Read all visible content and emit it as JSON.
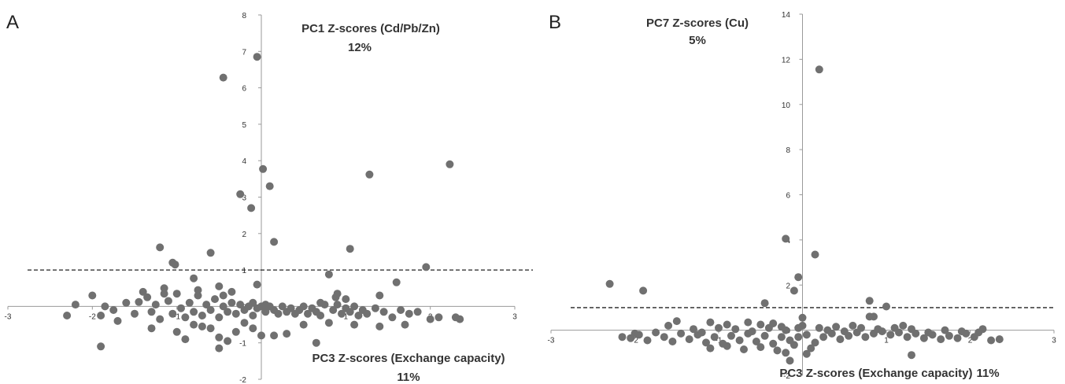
{
  "chart_data": [
    {
      "type": "scatter",
      "panel_label": "A",
      "title": "PC1 Z-scores (Cd/Pb/Zn)",
      "title_pct": "12%",
      "xlabel": "PC3 Z-scores (Exchange capacity)",
      "xlabel_pct": "11%",
      "xlim": [
        -3,
        3
      ],
      "ylim": [
        -2,
        8
      ],
      "xticks": [
        -3,
        -2,
        -1,
        0,
        1,
        2,
        3
      ],
      "yticks": [
        -2,
        -1,
        0,
        1,
        2,
        3,
        4,
        5,
        6,
        7,
        8
      ],
      "threshold_y": 1,
      "grid": false,
      "marker_color": "#707070",
      "points": [
        [
          -0.05,
          6.85
        ],
        [
          -0.45,
          6.28
        ],
        [
          1.28,
          3.62
        ],
        [
          2.23,
          3.9
        ],
        [
          0.02,
          3.77
        ],
        [
          0.1,
          3.3
        ],
        [
          -0.25,
          3.08
        ],
        [
          -0.12,
          2.7
        ],
        [
          0.15,
          1.77
        ],
        [
          1.05,
          1.58
        ],
        [
          -1.2,
          1.62
        ],
        [
          -0.6,
          1.47
        ],
        [
          -1.05,
          1.2
        ],
        [
          -1.02,
          1.15
        ],
        [
          1.95,
          1.08
        ],
        [
          0.8,
          0.88
        ],
        [
          -0.8,
          0.77
        ],
        [
          1.6,
          0.66
        ],
        [
          -0.5,
          0.55
        ],
        [
          1.4,
          0.3
        ],
        [
          -0.05,
          0.6
        ],
        [
          0.9,
          0.35
        ],
        [
          0.88,
          0.25
        ],
        [
          0.0,
          0.0
        ],
        [
          -2.3,
          -0.25
        ],
        [
          -2.2,
          0.05
        ],
        [
          -2.0,
          0.3
        ],
        [
          -1.9,
          -0.25
        ],
        [
          -1.85,
          0.0
        ],
        [
          -1.75,
          -0.1
        ],
        [
          -1.7,
          -0.4
        ],
        [
          -1.6,
          0.1
        ],
        [
          -1.5,
          -0.2
        ],
        [
          -1.4,
          0.4
        ],
        [
          -1.35,
          0.25
        ],
        [
          -1.3,
          -0.15
        ],
        [
          -1.25,
          0.05
        ],
        [
          -1.2,
          -0.35
        ],
        [
          -1.15,
          0.5
        ],
        [
          -1.1,
          0.15
        ],
        [
          -1.05,
          -0.2
        ],
        [
          -1.0,
          0.35
        ],
        [
          -0.95,
          -0.05
        ],
        [
          -0.9,
          -0.3
        ],
        [
          -0.85,
          0.1
        ],
        [
          -0.8,
          -0.15
        ],
        [
          -0.75,
          0.3
        ],
        [
          -0.7,
          -0.25
        ],
        [
          -0.65,
          0.05
        ],
        [
          -0.6,
          -0.1
        ],
        [
          -0.55,
          0.2
        ],
        [
          -0.5,
          -0.3
        ],
        [
          -0.45,
          0.0
        ],
        [
          -0.4,
          -0.15
        ],
        [
          -0.35,
          0.1
        ],
        [
          -0.3,
          -0.2
        ],
        [
          -0.25,
          0.05
        ],
        [
          -0.2,
          -0.1
        ],
        [
          -0.15,
          0.0
        ],
        [
          -0.1,
          -0.25
        ],
        [
          -0.05,
          -0.05
        ],
        [
          0.05,
          -0.15
        ],
        [
          0.1,
          0.0
        ],
        [
          0.15,
          -0.1
        ],
        [
          0.2,
          -0.2
        ],
        [
          0.25,
          0.0
        ],
        [
          0.3,
          -0.15
        ],
        [
          0.35,
          -0.05
        ],
        [
          0.4,
          -0.2
        ],
        [
          0.45,
          -0.1
        ],
        [
          0.5,
          0.0
        ],
        [
          0.55,
          -0.2
        ],
        [
          0.6,
          -0.05
        ],
        [
          0.65,
          -0.15
        ],
        [
          0.7,
          -0.25
        ],
        [
          0.75,
          0.05
        ],
        [
          0.85,
          -0.1
        ],
        [
          0.9,
          0.05
        ],
        [
          0.95,
          -0.2
        ],
        [
          1.0,
          -0.05
        ],
        [
          1.05,
          -0.15
        ],
        [
          1.1,
          0.0
        ],
        [
          1.15,
          -0.25
        ],
        [
          1.2,
          -0.1
        ],
        [
          1.25,
          -0.2
        ],
        [
          1.35,
          -0.05
        ],
        [
          1.45,
          -0.15
        ],
        [
          1.55,
          -0.3
        ],
        [
          1.65,
          -0.1
        ],
        [
          1.75,
          -0.2
        ],
        [
          1.85,
          -0.15
        ],
        [
          2.0,
          -0.35
        ],
        [
          2.1,
          -0.3
        ],
        [
          2.3,
          -0.3
        ],
        [
          2.35,
          -0.35
        ],
        [
          -1.3,
          -0.6
        ],
        [
          -1.9,
          -1.1
        ],
        [
          -1.0,
          -0.7
        ],
        [
          -0.9,
          -0.9
        ],
        [
          -0.7,
          -0.55
        ],
        [
          -0.5,
          -0.85
        ],
        [
          -0.4,
          -0.95
        ],
        [
          -0.3,
          -0.7
        ],
        [
          -0.1,
          -0.6
        ],
        [
          0.0,
          -0.8
        ],
        [
          0.15,
          -0.8
        ],
        [
          0.3,
          -0.75
        ],
        [
          0.65,
          -1.0
        ],
        [
          -0.5,
          -1.15
        ],
        [
          -0.6,
          -0.6
        ],
        [
          -0.8,
          -0.5
        ],
        [
          -0.2,
          -0.45
        ],
        [
          0.5,
          -0.5
        ],
        [
          0.8,
          -0.45
        ],
        [
          1.1,
          -0.5
        ],
        [
          1.4,
          -0.55
        ],
        [
          1.7,
          -0.5
        ],
        [
          1.0,
          0.2
        ],
        [
          0.7,
          0.1
        ],
        [
          -0.45,
          0.3
        ],
        [
          -1.15,
          0.35
        ],
        [
          -1.45,
          0.12
        ],
        [
          -0.75,
          0.45
        ],
        [
          -0.35,
          0.4
        ],
        [
          0.05,
          0.05
        ],
        [
          -0.1,
          0.1
        ]
      ]
    },
    {
      "type": "scatter",
      "panel_label": "B",
      "title": "PC7 Z-scores (Cu)",
      "title_pct": "5%",
      "xlabel": "PC3 Z-scores (Exchange capacity)",
      "xlabel_pct": "11%",
      "xlim": [
        -3,
        3
      ],
      "ylim": [
        -2,
        14
      ],
      "xticks": [
        -3,
        -2,
        -1,
        0,
        1,
        2,
        3
      ],
      "yticks": [
        -2,
        0,
        2,
        4,
        6,
        8,
        10,
        12,
        14
      ],
      "threshold_y": 1,
      "grid": false,
      "marker_color": "#707070",
      "points": [
        [
          0.2,
          11.55
        ],
        [
          -0.2,
          4.05
        ],
        [
          0.15,
          3.35
        ],
        [
          -0.05,
          2.35
        ],
        [
          -2.3,
          2.05
        ],
        [
          -1.9,
          1.75
        ],
        [
          -0.45,
          1.2
        ],
        [
          -0.1,
          1.75
        ],
        [
          0.8,
          1.3
        ],
        [
          1.0,
          1.05
        ],
        [
          0.0,
          0.55
        ],
        [
          0.8,
          0.6
        ],
        [
          0.85,
          0.6
        ],
        [
          -1.5,
          0.4
        ],
        [
          -1.1,
          0.35
        ],
        [
          -0.65,
          0.35
        ],
        [
          -0.35,
          0.3
        ],
        [
          1.3,
          -1.1
        ],
        [
          -0.15,
          -1.35
        ],
        [
          -0.05,
          -0.3
        ],
        [
          -2.15,
          -0.3
        ],
        [
          -2.05,
          -0.35
        ],
        [
          -1.95,
          -0.2
        ],
        [
          -1.85,
          -0.45
        ],
        [
          -1.75,
          -0.1
        ],
        [
          -1.65,
          -0.3
        ],
        [
          -1.55,
          -0.5
        ],
        [
          -1.45,
          -0.15
        ],
        [
          -1.35,
          -0.4
        ],
        [
          -1.25,
          -0.2
        ],
        [
          -1.15,
          -0.55
        ],
        [
          -1.05,
          -0.3
        ],
        [
          -0.95,
          -0.6
        ],
        [
          -0.85,
          -0.25
        ],
        [
          -0.75,
          -0.45
        ],
        [
          -0.65,
          -0.15
        ],
        [
          -0.55,
          -0.5
        ],
        [
          -0.45,
          -0.25
        ],
        [
          -0.35,
          -0.6
        ],
        [
          -0.25,
          -0.3
        ],
        [
          -0.15,
          -0.45
        ],
        [
          0.05,
          -0.2
        ],
        [
          0.15,
          -0.55
        ],
        [
          0.25,
          -0.3
        ],
        [
          0.35,
          -0.15
        ],
        [
          0.45,
          -0.4
        ],
        [
          0.55,
          -0.25
        ],
        [
          0.65,
          -0.1
        ],
        [
          0.75,
          -0.3
        ],
        [
          0.85,
          -0.15
        ],
        [
          0.95,
          -0.05
        ],
        [
          1.05,
          -0.2
        ],
        [
          1.15,
          -0.1
        ],
        [
          1.25,
          -0.3
        ],
        [
          1.35,
          -0.15
        ],
        [
          1.45,
          -0.35
        ],
        [
          1.55,
          -0.2
        ],
        [
          1.65,
          -0.4
        ],
        [
          1.75,
          -0.25
        ],
        [
          1.85,
          -0.35
        ],
        [
          1.95,
          -0.15
        ],
        [
          2.05,
          -0.3
        ],
        [
          2.15,
          0.05
        ],
        [
          2.25,
          -0.45
        ],
        [
          2.35,
          -0.4
        ],
        [
          -1.1,
          -0.8
        ],
        [
          -0.9,
          -0.7
        ],
        [
          -0.7,
          -0.85
        ],
        [
          -0.5,
          -0.75
        ],
        [
          -0.3,
          -0.9
        ],
        [
          -0.1,
          -0.65
        ],
        [
          0.1,
          -0.8
        ],
        [
          -1.2,
          -0.1
        ],
        [
          -1.0,
          0.1
        ],
        [
          -0.8,
          0.05
        ],
        [
          -0.6,
          -0.05
        ],
        [
          -0.4,
          0.1
        ],
        [
          -0.2,
          0.0
        ],
        [
          0.3,
          0.0
        ],
        [
          0.5,
          -0.05
        ],
        [
          0.7,
          0.1
        ],
        [
          0.9,
          0.05
        ],
        [
          1.1,
          0.1
        ],
        [
          1.3,
          0.05
        ],
        [
          1.5,
          -0.1
        ],
        [
          1.7,
          0.0
        ],
        [
          1.9,
          -0.05
        ],
        [
          2.1,
          -0.1
        ],
        [
          0.0,
          0.2
        ],
        [
          -0.05,
          0.1
        ],
        [
          -0.25,
          0.15
        ],
        [
          0.4,
          0.15
        ],
        [
          -1.3,
          0.05
        ],
        [
          -1.6,
          0.2
        ],
        [
          -2.0,
          -0.15
        ],
        [
          1.2,
          0.2
        ],
        [
          0.6,
          0.2
        ],
        [
          -0.9,
          0.25
        ],
        [
          -0.5,
          0.25
        ],
        [
          0.2,
          0.1
        ],
        [
          0.05,
          -1.05
        ],
        [
          -0.2,
          -1.0
        ]
      ]
    }
  ]
}
